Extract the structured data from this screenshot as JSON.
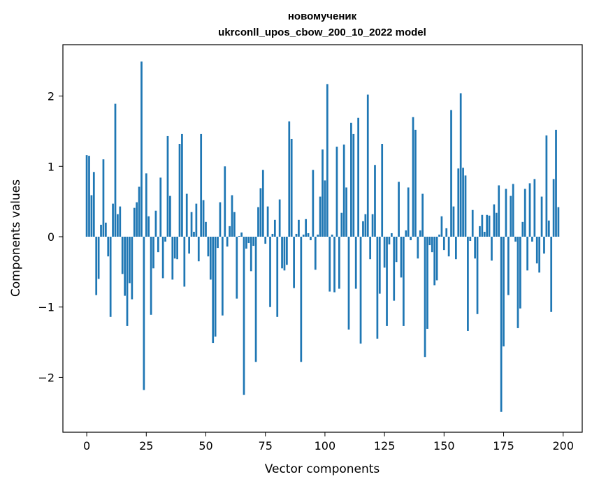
{
  "chart_data": {
    "type": "bar",
    "title_line1": "новомученик",
    "title_line2": "ukrconll_upos_cbow_200_10_2022 model",
    "xlabel": "Vector components",
    "ylabel": "Components values",
    "xlim": [
      -10,
      208
    ],
    "ylim": [
      -2.78,
      2.73
    ],
    "xticks": [
      0,
      25,
      50,
      75,
      100,
      125,
      150,
      175,
      200
    ],
    "yticks": [
      -2,
      -1,
      0,
      1,
      2
    ],
    "ytick_labels": [
      "−2",
      "−1",
      "0",
      "1",
      "2"
    ],
    "bar_color": "#1f77b4",
    "grid": false,
    "legend": "none",
    "values": [
      1.16,
      1.15,
      0.59,
      0.92,
      -0.83,
      -0.6,
      0.17,
      1.1,
      0.2,
      -0.28,
      -1.14,
      0.47,
      1.89,
      0.32,
      0.43,
      -0.53,
      -0.84,
      -1.27,
      -0.66,
      -0.89,
      0.41,
      0.49,
      0.71,
      2.49,
      -2.18,
      0.9,
      0.29,
      -1.11,
      -0.45,
      0.37,
      -0.22,
      0.84,
      -0.59,
      -0.07,
      1.43,
      0.58,
      -0.61,
      -0.31,
      -0.32,
      1.32,
      1.46,
      -0.71,
      0.61,
      -0.24,
      0.35,
      0.07,
      0.47,
      -0.35,
      1.46,
      0.52,
      0.21,
      -0.28,
      -0.61,
      -1.51,
      -1.42,
      -0.16,
      0.49,
      -1.12,
      1.0,
      -0.14,
      0.15,
      0.59,
      0.35,
      -0.88,
      0.01,
      0.06,
      -2.25,
      -0.17,
      -0.09,
      -0.49,
      -0.13,
      -1.78,
      0.42,
      0.69,
      0.95,
      -0.1,
      0.43,
      -1.0,
      0.04,
      0.24,
      -1.14,
      0.53,
      -0.45,
      -0.48,
      -0.4,
      1.64,
      1.39,
      -0.73,
      0.04,
      0.24,
      -1.78,
      0.03,
      0.25,
      0.05,
      -0.05,
      0.95,
      -0.47,
      0.03,
      0.57,
      1.24,
      0.8,
      2.17,
      -0.78,
      0.03,
      -0.79,
      1.28,
      -0.74,
      0.34,
      1.31,
      0.7,
      -1.32,
      1.62,
      1.46,
      -0.74,
      1.69,
      -1.52,
      0.22,
      0.32,
      2.02,
      -0.32,
      0.32,
      1.02,
      -1.45,
      -0.81,
      1.32,
      -0.44,
      -1.27,
      -0.11,
      0.05,
      -0.91,
      -0.36,
      0.78,
      -0.58,
      -1.27,
      0.09,
      0.7,
      -0.05,
      1.7,
      1.52,
      -0.31,
      0.09,
      0.61,
      -1.71,
      -1.31,
      -0.12,
      -0.22,
      -0.69,
      -0.62,
      0.03,
      0.29,
      -0.19,
      0.12,
      -0.28,
      1.8,
      0.43,
      -0.32,
      0.97,
      2.04,
      0.98,
      0.87,
      -1.34,
      -0.06,
      0.38,
      -0.31,
      -1.1,
      0.15,
      0.31,
      0.07,
      0.31,
      0.3,
      -0.34,
      0.46,
      0.34,
      0.73,
      -2.49,
      -1.56,
      0.68,
      -0.83,
      0.58,
      0.75,
      -0.07,
      -1.3,
      -1.02,
      0.21,
      0.68,
      -0.48,
      0.76,
      -0.07,
      0.82,
      -0.38,
      -0.51,
      0.57,
      -0.24,
      1.44,
      0.23,
      -1.07,
      0.82,
      1.52,
      0.42
    ]
  }
}
